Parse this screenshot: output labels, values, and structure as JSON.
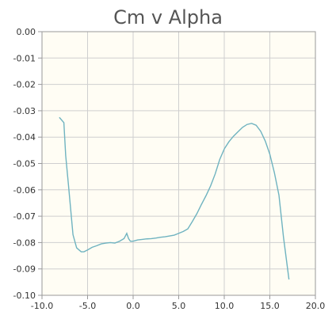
{
  "chart_data": {
    "type": "line",
    "title": "Cm v Alpha",
    "xlabel": "",
    "ylabel": "",
    "xlim": [
      -10.0,
      20.0
    ],
    "ylim": [
      -0.1,
      0.0
    ],
    "x_ticks": [
      -10.0,
      -5.0,
      0.0,
      5.0,
      10.0,
      15.0,
      20.0
    ],
    "x_tick_labels": [
      "-10.0",
      "-5.0",
      "0.0",
      "5.0",
      "10.0",
      "15.0",
      "20.0"
    ],
    "y_ticks": [
      0.0,
      -0.01,
      -0.02,
      -0.03,
      -0.04,
      -0.05,
      -0.06,
      -0.07,
      -0.08,
      -0.09,
      -0.1
    ],
    "y_tick_labels": [
      "0.00",
      "-0.01",
      "-0.02",
      "-0.03",
      "-0.04",
      "-0.05",
      "-0.06",
      "-0.07",
      "-0.08",
      "-0.09",
      "-0.10"
    ],
    "grid": true,
    "series": [
      {
        "color": "#6fb3c0",
        "x": [
          -8.1,
          -7.6,
          -7.4,
          -7.1,
          -6.6,
          -6.2,
          -5.7,
          -5.4,
          -5.0,
          -4.5,
          -4.0,
          -3.5,
          -3.0,
          -2.5,
          -2.0,
          -1.5,
          -1.0,
          -0.7,
          -0.5,
          -0.3,
          0.0,
          0.5,
          1.0,
          1.5,
          2.0,
          2.5,
          3.0,
          3.5,
          4.0,
          4.5,
          5.0,
          5.5,
          6.0,
          6.5,
          7.0,
          7.5,
          8.0,
          8.5,
          9.0,
          9.5,
          10.0,
          10.5,
          11.0,
          11.5,
          12.0,
          12.5,
          13.0,
          13.5,
          14.0,
          14.5,
          15.0,
          15.5,
          16.0,
          16.5,
          17.1
        ],
        "y": [
          -0.0325,
          -0.0345,
          -0.047,
          -0.058,
          -0.077,
          -0.082,
          -0.0835,
          -0.0835,
          -0.0828,
          -0.0818,
          -0.0812,
          -0.0805,
          -0.0802,
          -0.08,
          -0.0802,
          -0.0795,
          -0.0785,
          -0.0765,
          -0.0785,
          -0.0795,
          -0.0795,
          -0.079,
          -0.0788,
          -0.0786,
          -0.0785,
          -0.0783,
          -0.078,
          -0.0778,
          -0.0775,
          -0.0772,
          -0.0765,
          -0.0758,
          -0.0748,
          -0.072,
          -0.069,
          -0.0655,
          -0.0622,
          -0.0585,
          -0.054,
          -0.0485,
          -0.0445,
          -0.0418,
          -0.0397,
          -0.038,
          -0.0363,
          -0.0352,
          -0.0348,
          -0.0355,
          -0.0378,
          -0.0415,
          -0.0465,
          -0.0535,
          -0.062,
          -0.078,
          -0.094
        ]
      }
    ]
  }
}
